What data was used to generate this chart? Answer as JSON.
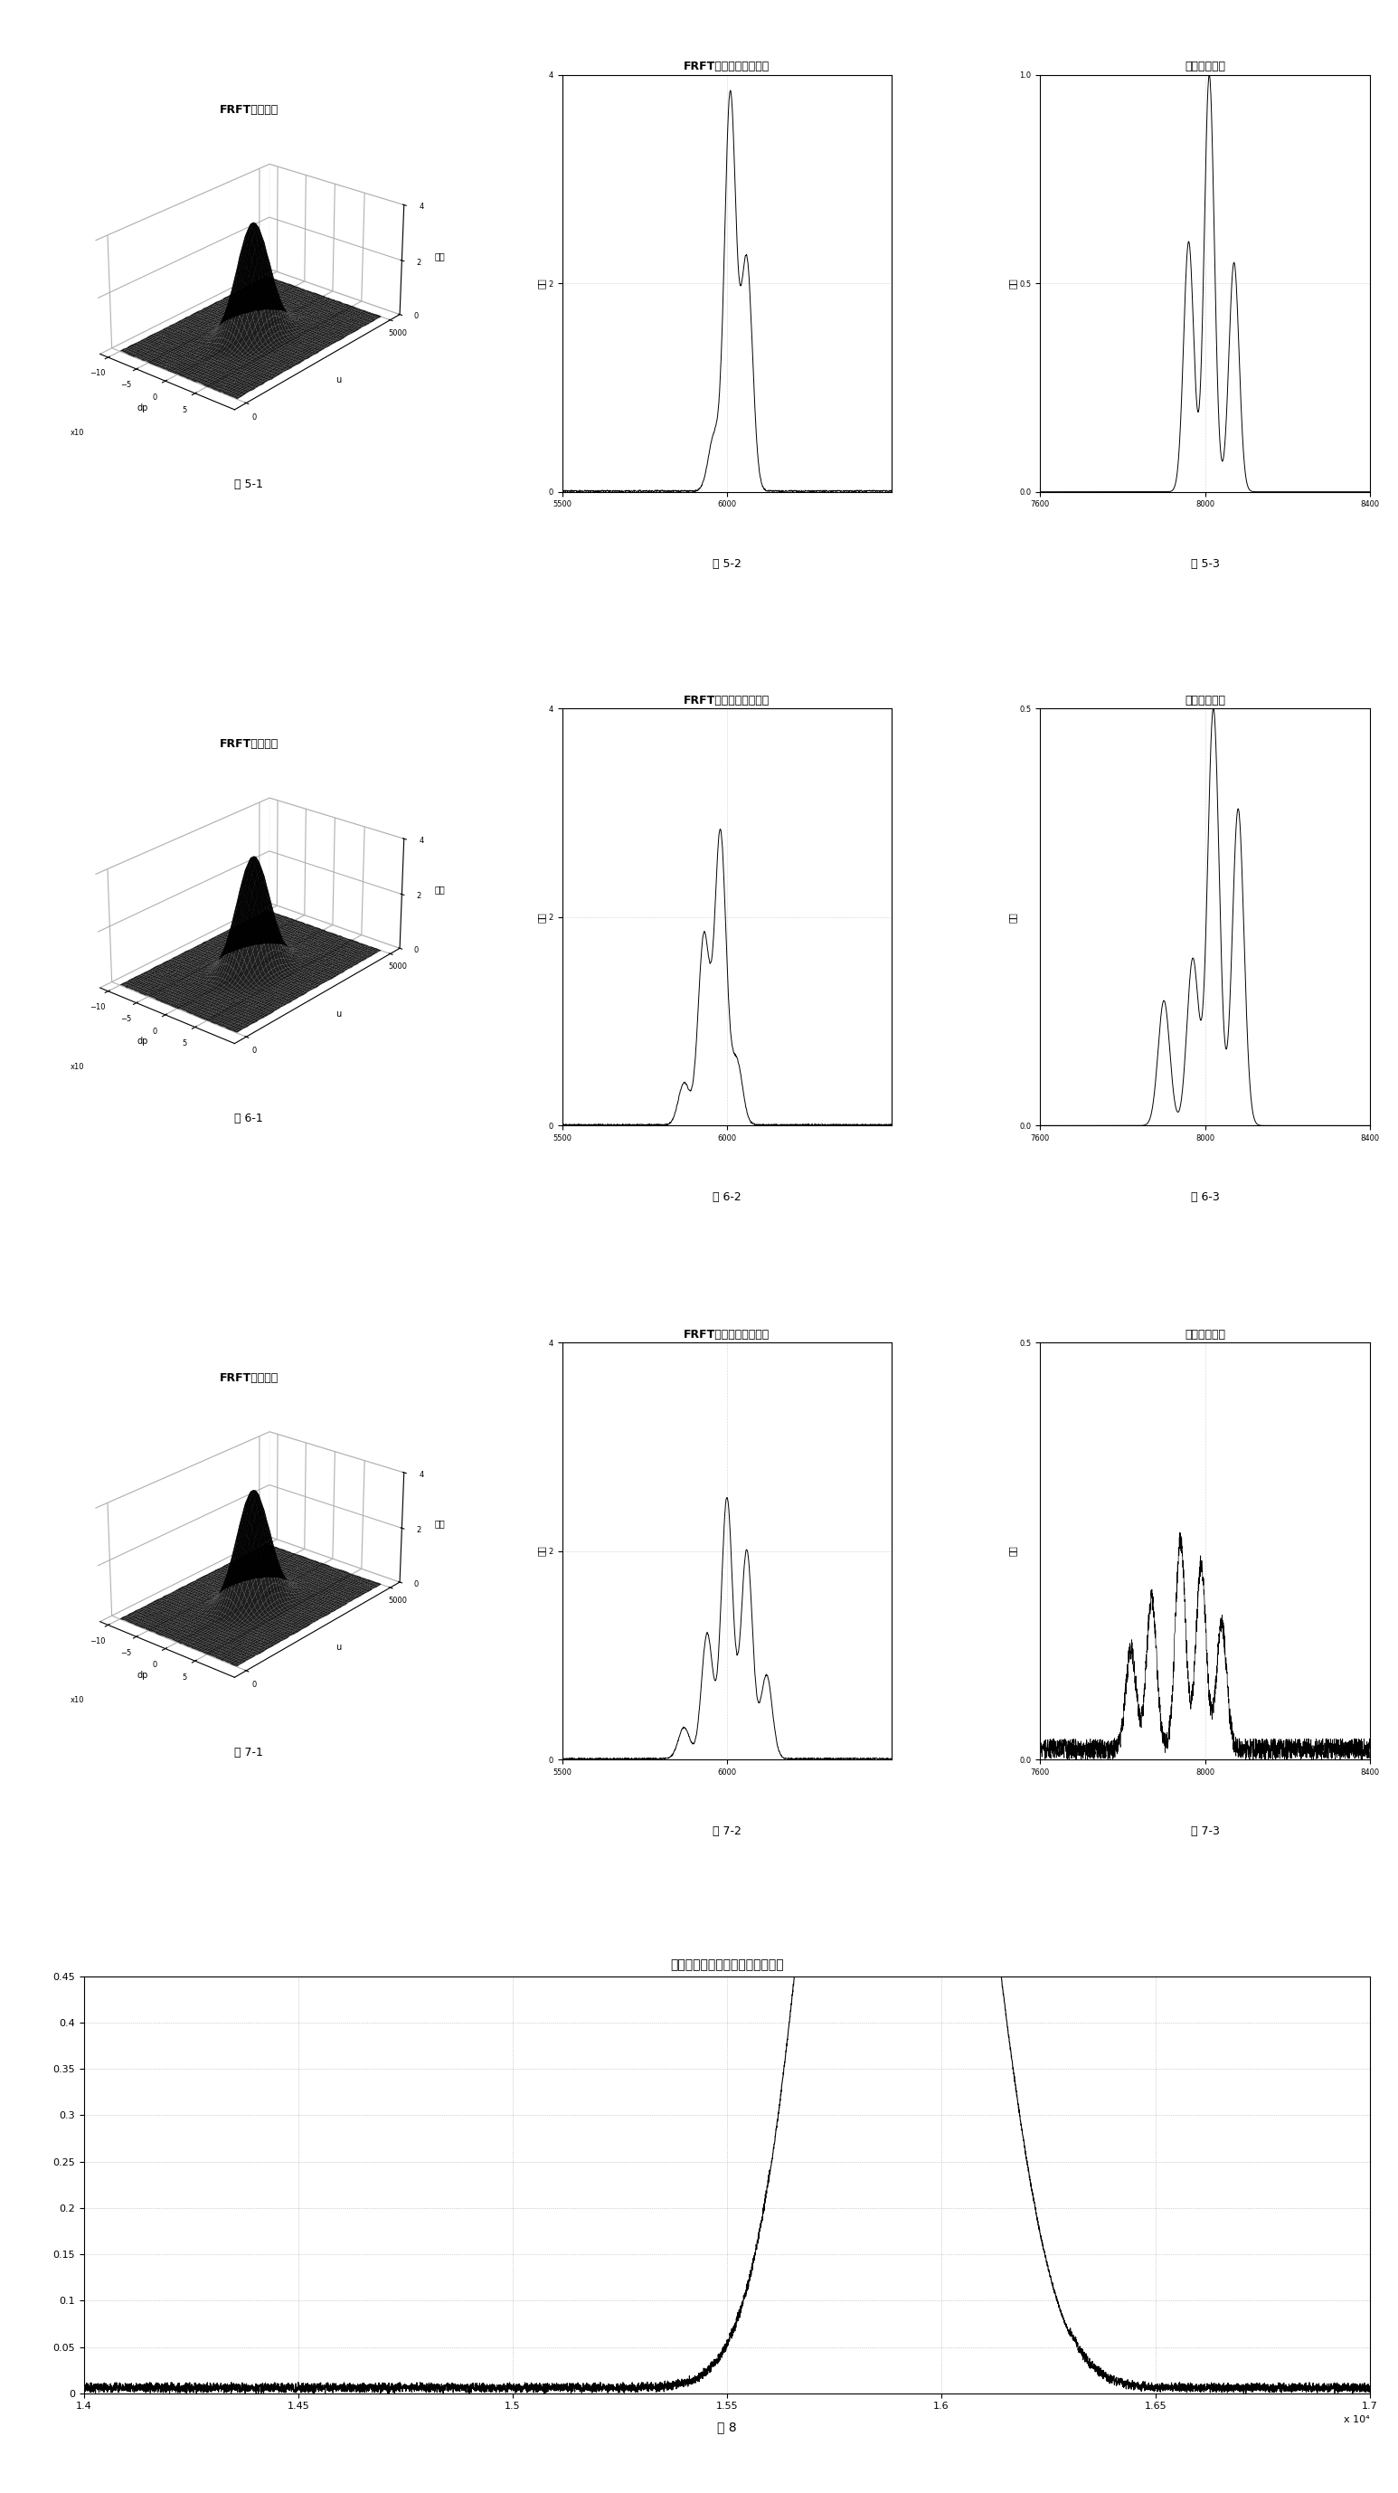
{
  "fig_title_51": "FRFT二维搜索",
  "fig_title_52": "FRFT模值最优阶次输出",
  "fig_title_53": "拷贝相关输出",
  "fig_title_61": "FRFT二维搜索",
  "fig_title_62": "FRFT模值最优阶次输出",
  "fig_title_63": "拷贝相关输出",
  "fig_title_71": "FRFT二维搜索",
  "fig_title_72": "FRFT模值最优阶次输出",
  "fig_title_73": "拷贝相关输出",
  "fig_title_8": "以原信号作为参考的拷贝相关输出",
  "label_51": "图 5-1",
  "label_52": "图 5-2",
  "label_53": "图 5-3",
  "label_61": "图 6-1",
  "label_62": "图 6-2",
  "label_63": "图 6-3",
  "label_71": "图 7-1",
  "label_72": "图 7-2",
  "label_73": "图 7-3",
  "label_8": "图 8",
  "ylabel_3d": "幅度",
  "ylabel_2d": "幅度",
  "xlabel_3d_dp": "dp",
  "xlabel_3d_u": "u",
  "bg_color": "#ffffff",
  "grid_color": "#aaaaaa"
}
